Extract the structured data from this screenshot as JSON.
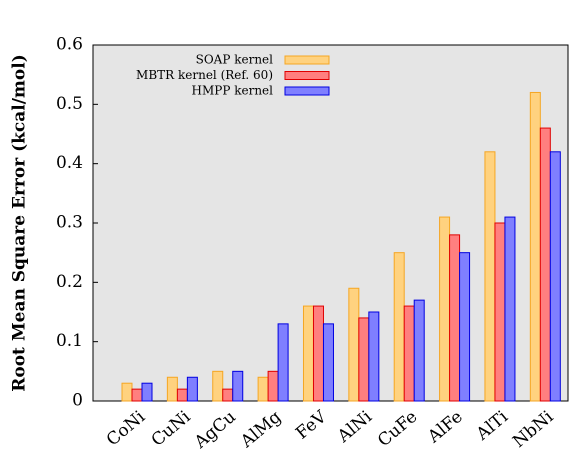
{
  "chart_data": {
    "type": "bar",
    "y_label": "Root Mean Square Error (kcal/mol)",
    "categories": [
      "CoNi",
      "CuNi",
      "AgCu",
      "AlMg",
      "FeV",
      "AlNi",
      "CuFe",
      "AlFe",
      "AlTi",
      "NbNi"
    ],
    "series": [
      {
        "name": "SOAP kernel",
        "color": "#ffd27f",
        "edge": "#f5a623",
        "values": [
          0.03,
          0.04,
          0.05,
          0.04,
          0.16,
          0.19,
          0.25,
          0.31,
          0.42,
          0.52
        ]
      },
      {
        "name": "MBTR kernel (Ref. 60)",
        "color": "#ff7f7f",
        "edge": "#e00000",
        "values": [
          0.02,
          0.02,
          0.02,
          0.05,
          0.16,
          0.14,
          0.16,
          0.28,
          0.3,
          0.46
        ]
      },
      {
        "name": "HMPP kernel",
        "color": "#7f7fff",
        "edge": "#0000e0",
        "values": [
          0.03,
          0.04,
          0.05,
          0.13,
          0.13,
          0.15,
          0.17,
          0.25,
          0.31,
          0.42
        ]
      }
    ],
    "ylim": [
      0,
      0.6
    ],
    "yticks": [
      0,
      0.1,
      0.2,
      0.3,
      0.4,
      0.5,
      0.6
    ],
    "legend": "upper left"
  }
}
